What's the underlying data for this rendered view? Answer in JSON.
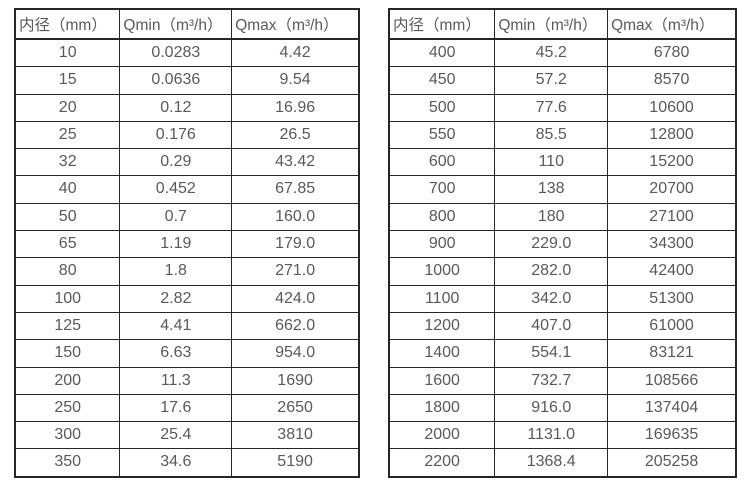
{
  "colors": {
    "background": "#ffffff",
    "table_border": "#262626",
    "text": "#595959"
  },
  "tables": [
    {
      "name": "flow-table-small-diameters",
      "headers": [
        "内径（mm）",
        "Qmin（m³/h）",
        "Qmax（m³/h）"
      ],
      "rows": [
        [
          "10",
          "0.0283",
          "4.42"
        ],
        [
          "15",
          "0.0636",
          "9.54"
        ],
        [
          "20",
          "0.12",
          "16.96"
        ],
        [
          "25",
          "0.176",
          "26.5"
        ],
        [
          "32",
          "0.29",
          "43.42"
        ],
        [
          "40",
          "0.452",
          "67.85"
        ],
        [
          "50",
          "0.7",
          "160.0"
        ],
        [
          "65",
          "1.19",
          "179.0"
        ],
        [
          "80",
          "1.8",
          "271.0"
        ],
        [
          "100",
          "2.82",
          "424.0"
        ],
        [
          "125",
          "4.41",
          "662.0"
        ],
        [
          "150",
          "6.63",
          "954.0"
        ],
        [
          "200",
          "11.3",
          "1690"
        ],
        [
          "250",
          "17.6",
          "2650"
        ],
        [
          "300",
          "25.4",
          "3810"
        ],
        [
          "350",
          "34.6",
          "5190"
        ]
      ]
    },
    {
      "name": "flow-table-large-diameters",
      "headers": [
        "内径（mm）",
        "Qmin（m³/h）",
        "Qmax（m³/h）"
      ],
      "rows": [
        [
          "400",
          "45.2",
          "6780"
        ],
        [
          "450",
          "57.2",
          "8570"
        ],
        [
          "500",
          "77.6",
          "10600"
        ],
        [
          "550",
          "85.5",
          "12800"
        ],
        [
          "600",
          "110",
          "15200"
        ],
        [
          "700",
          "138",
          "20700"
        ],
        [
          "800",
          "180",
          "27100"
        ],
        [
          "900",
          "229.0",
          "34300"
        ],
        [
          "1000",
          "282.0",
          "42400"
        ],
        [
          "1100",
          "342.0",
          "51300"
        ],
        [
          "1200",
          "407.0",
          "61000"
        ],
        [
          "1400",
          "554.1",
          "83121"
        ],
        [
          "1600",
          "732.7",
          "108566"
        ],
        [
          "1800",
          "916.0",
          "137404"
        ],
        [
          "2000",
          "1131.0",
          "169635"
        ],
        [
          "2200",
          "1368.4",
          "205258"
        ]
      ]
    }
  ]
}
